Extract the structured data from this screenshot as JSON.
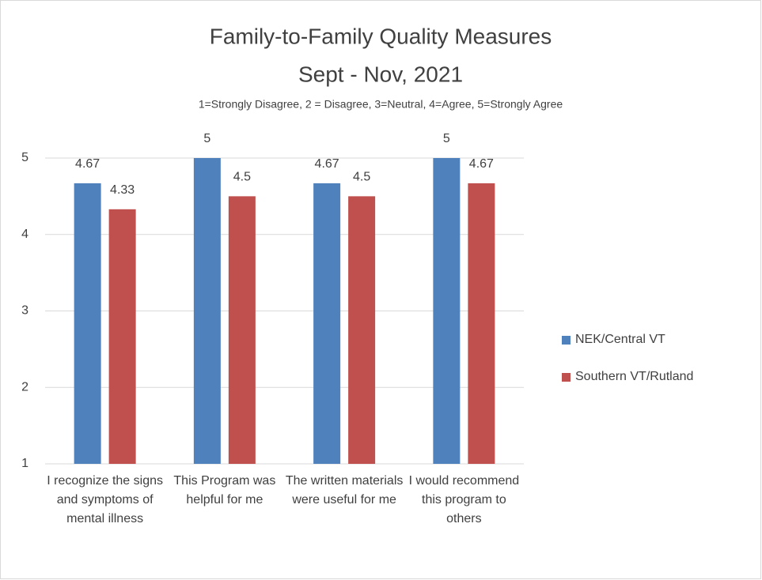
{
  "chart_data": {
    "type": "bar",
    "title": [
      "Family-to-Family Quality Measures",
      "Sept - Nov, 2021"
    ],
    "subtitle": "1=Strongly Disagree, 2 = Disagree, 3=Neutral, 4=Agree, 5=Strongly Agree",
    "categories": [
      "I recognize the signs and symptoms of mental illness",
      "This Program was helpful for me",
      "The written materials were useful for me",
      "I would recommend this program to others"
    ],
    "series": [
      {
        "name": "NEK/Central VT",
        "color": "#4f81bd",
        "values": [
          4.67,
          5,
          4.67,
          5
        ]
      },
      {
        "name": "Southern VT/Rutland",
        "color": "#c0504d",
        "values": [
          4.33,
          4.5,
          4.5,
          4.67
        ]
      }
    ],
    "ylim": [
      1,
      5
    ],
    "yticks": [
      1,
      2,
      3,
      4,
      5
    ],
    "grid": true,
    "legend": "right"
  }
}
